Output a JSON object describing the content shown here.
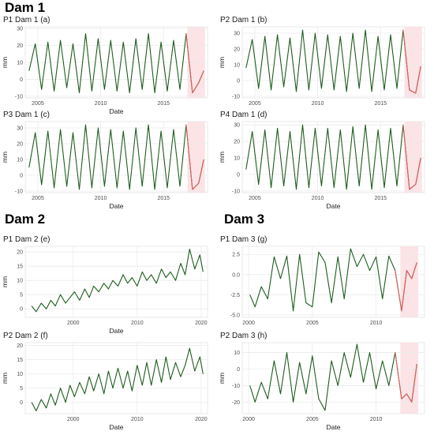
{
  "sections": [
    {
      "title": "Dam 1"
    },
    {
      "title": "Dam 2"
    },
    {
      "title": "Dam 3"
    }
  ],
  "colors": {
    "series": "#1f5c1f",
    "highlight": "#e06060",
    "highlight_band": "#fbe3e6",
    "grid": "#ebebeb",
    "panel_border": "#d9d9d9"
  },
  "chart_data": [
    {
      "id": "p1dam1",
      "title": "P1 Dam 1 (a)",
      "type": "line",
      "xlabel": "Date",
      "ylabel": "mm",
      "xlim": [
        2004,
        2018.5
      ],
      "ylim": [
        -11,
        31
      ],
      "xticks": [
        2005,
        2010,
        2015
      ],
      "yticks": [
        -10,
        0,
        10,
        20,
        30
      ],
      "tick_labels_y": [
        "-10",
        "0",
        "10",
        "20",
        "30"
      ],
      "tick_labels_x": [
        "2005",
        "2010",
        "2015"
      ],
      "highlight_range": [
        2016.9,
        2018.3
      ],
      "grid": true,
      "series": [
        {
          "x": [
            2004.3,
            2004.8,
            2005.3,
            2005.8,
            2006.3,
            2006.8,
            2007.3,
            2007.8,
            2008.3,
            2008.8,
            2009.3,
            2009.8,
            2010.3,
            2010.8,
            2011.3,
            2011.8,
            2012.3,
            2012.8,
            2013.3,
            2013.8,
            2014.3,
            2014.8,
            2015.3,
            2015.8,
            2016.3,
            2016.8,
            2017.3,
            2017.8,
            2018.2
          ],
          "y": [
            5,
            21,
            -6,
            22,
            -7,
            23,
            -5,
            21,
            -8,
            27,
            -7,
            24,
            -6,
            23,
            -7,
            22,
            -8,
            24,
            -6,
            27,
            -8,
            22,
            -7,
            23,
            -6,
            27,
            -8,
            -2,
            5
          ]
        }
      ]
    },
    {
      "id": "p2dam1",
      "title": "P2 Dam 1 (b)",
      "type": "line",
      "xlabel": "",
      "ylabel": "mm",
      "xlim": [
        2004,
        2018.5
      ],
      "ylim": [
        -11,
        34
      ],
      "xticks": [
        2005,
        2010,
        2015
      ],
      "yticks": [
        -10,
        0,
        10,
        20,
        30
      ],
      "tick_labels_y": [
        "-10",
        "0",
        "10",
        "20",
        "30"
      ],
      "tick_labels_x": [
        "2005",
        "2010",
        "2015"
      ],
      "highlight_range": [
        2016.9,
        2018.3
      ],
      "grid": true,
      "series": [
        {
          "x": [
            2004.3,
            2004.8,
            2005.3,
            2005.8,
            2006.3,
            2006.8,
            2007.3,
            2007.8,
            2008.3,
            2008.8,
            2009.3,
            2009.8,
            2010.3,
            2010.8,
            2011.3,
            2011.8,
            2012.3,
            2012.8,
            2013.3,
            2013.8,
            2014.3,
            2014.8,
            2015.3,
            2015.8,
            2016.3,
            2016.8,
            2017.3,
            2017.8,
            2018.2
          ],
          "y": [
            8,
            26,
            -5,
            28,
            -6,
            29,
            -4,
            27,
            -7,
            32,
            -6,
            30,
            -5,
            29,
            -6,
            28,
            -7,
            30,
            -5,
            32,
            -7,
            28,
            -6,
            29,
            -5,
            32,
            -6,
            -8,
            9
          ]
        }
      ]
    },
    {
      "id": "p3dam1",
      "title": "P3 Dam 1 (c)",
      "type": "line",
      "xlabel": "Date",
      "ylabel": "mm",
      "xlim": [
        2004,
        2018.5
      ],
      "ylim": [
        -11,
        34
      ],
      "xticks": [
        2005,
        2010,
        2015
      ],
      "yticks": [
        -10,
        0,
        10,
        20,
        30
      ],
      "tick_labels_y": [
        "-10",
        "0",
        "10",
        "20",
        "30"
      ],
      "tick_labels_x": [
        "2005",
        "2010",
        "2015"
      ],
      "highlight_range": [
        2016.9,
        2018.3
      ],
      "grid": true,
      "series": [
        {
          "x": [
            2004.3,
            2004.8,
            2005.3,
            2005.8,
            2006.3,
            2006.8,
            2007.3,
            2007.8,
            2008.3,
            2008.8,
            2009.3,
            2009.8,
            2010.3,
            2010.8,
            2011.3,
            2011.8,
            2012.3,
            2012.8,
            2013.3,
            2013.8,
            2014.3,
            2014.8,
            2015.3,
            2015.8,
            2016.3,
            2016.8,
            2017.3,
            2017.8,
            2018.2
          ],
          "y": [
            5,
            27,
            -6,
            28,
            -8,
            29,
            -7,
            27,
            -9,
            32,
            -8,
            30,
            -7,
            29,
            -8,
            28,
            -9,
            30,
            -7,
            32,
            -9,
            28,
            -8,
            29,
            -7,
            32,
            -9,
            -5,
            10
          ]
        }
      ]
    },
    {
      "id": "p4dam1",
      "title": "P4 Dam 1 (d)",
      "type": "line",
      "xlabel": "Date",
      "ylabel": "mm",
      "xlim": [
        2004,
        2018.5
      ],
      "ylim": [
        -11,
        32
      ],
      "xticks": [
        2005,
        2010,
        2015
      ],
      "yticks": [
        -10,
        0,
        10,
        20,
        30
      ],
      "tick_labels_y": [
        "-10",
        "0",
        "10",
        "20",
        "30"
      ],
      "tick_labels_x": [
        "2005",
        "2010",
        "2015"
      ],
      "highlight_range": [
        2016.9,
        2018.3
      ],
      "grid": true,
      "series": [
        {
          "x": [
            2004.3,
            2004.8,
            2005.3,
            2005.8,
            2006.3,
            2006.8,
            2007.3,
            2007.8,
            2008.3,
            2008.8,
            2009.3,
            2009.8,
            2010.3,
            2010.8,
            2011.3,
            2011.8,
            2012.3,
            2012.8,
            2013.3,
            2013.8,
            2014.3,
            2014.8,
            2015.3,
            2015.8,
            2016.3,
            2016.8,
            2017.3,
            2017.8,
            2018.2
          ],
          "y": [
            3,
            26,
            -6,
            27,
            -8,
            28,
            -7,
            26,
            -9,
            30,
            -8,
            28,
            -7,
            28,
            -8,
            27,
            -9,
            29,
            -7,
            30,
            -9,
            27,
            -8,
            28,
            -7,
            30,
            -9,
            -6,
            10
          ]
        }
      ]
    },
    {
      "id": "p1dam2",
      "title": "P1 Dam 2 (e)",
      "type": "line",
      "xlabel": "Date",
      "ylabel": "mm",
      "xlim": [
        1992.5,
        2021
      ],
      "ylim": [
        -3,
        22
      ],
      "xticks": [
        2000,
        2010,
        2020
      ],
      "yticks": [
        0,
        5,
        10,
        15,
        20
      ],
      "tick_labels_y": [
        "0",
        "5",
        "10",
        "15",
        "20"
      ],
      "tick_labels_x": [
        "2000",
        "2010",
        "2020"
      ],
      "grid": true,
      "series": [
        {
          "x": [
            1993.5,
            1994.2,
            1995,
            1995.8,
            1996.5,
            1997.2,
            1998,
            1998.8,
            1999.5,
            2000.2,
            2001,
            2001.8,
            2002.5,
            2003.2,
            2004,
            2004.8,
            2005.5,
            2006.2,
            2007,
            2007.8,
            2008.5,
            2009.2,
            2010,
            2010.8,
            2011.5,
            2012.2,
            2013,
            2013.8,
            2014.5,
            2015.2,
            2016,
            2016.8,
            2017.5,
            2018.2,
            2019,
            2019.8,
            2020.3
          ],
          "y": [
            1,
            -1,
            2,
            0,
            3,
            1,
            5,
            2,
            4,
            6,
            3,
            7,
            4,
            8,
            6,
            9,
            7,
            10,
            8,
            12,
            9,
            11,
            8,
            13,
            10,
            12,
            9,
            14,
            11,
            13,
            10,
            16,
            12,
            21,
            14,
            19,
            13
          ]
        }
      ]
    },
    {
      "id": "p1dam3",
      "title": "P1 Dam 3 (g)",
      "type": "line",
      "xlabel": "",
      "ylabel": "",
      "xlim": [
        1999.5,
        2013.8
      ],
      "ylim": [
        -5.3,
        3.5
      ],
      "xticks": [
        2000,
        2005,
        2010
      ],
      "yticks": [
        -5.0,
        -2.5,
        0.0,
        2.5
      ],
      "tick_labels_y": [
        "-5.0",
        "-2.5",
        "0.0",
        "2.5"
      ],
      "tick_labels_x": [
        "2000",
        "2005",
        "2010"
      ],
      "highlight_range": [
        2011.9,
        2013.3
      ],
      "grid": true,
      "series": [
        {
          "x": [
            2000.1,
            2000.5,
            2001,
            2001.5,
            2002,
            2002.5,
            2003,
            2003.5,
            2004,
            2004.5,
            2005,
            2005.5,
            2006,
            2006.5,
            2007,
            2007.5,
            2008,
            2008.5,
            2009,
            2009.5,
            2010,
            2010.5,
            2011,
            2011.5,
            2012,
            2012.4,
            2012.8,
            2013.2
          ],
          "y": [
            -2.5,
            -4,
            -1.5,
            -3,
            2.2,
            -0.5,
            2.3,
            -4.5,
            2.5,
            -3.5,
            -4,
            2.8,
            1.5,
            -3.5,
            2.2,
            -3,
            3.2,
            1,
            2.5,
            0.5,
            2.2,
            -3,
            2.3,
            0.5,
            -4.5,
            0.5,
            -0.5,
            1.5
          ]
        }
      ]
    },
    {
      "id": "p2dam2",
      "title": "P2 Dam 2 (f)",
      "type": "line",
      "xlabel": "Date",
      "ylabel": "mm",
      "xlim": [
        1992.5,
        2021
      ],
      "ylim": [
        -4,
        21
      ],
      "xticks": [
        2000,
        2010,
        2020
      ],
      "yticks": [
        0,
        5,
        10,
        15,
        20
      ],
      "tick_labels_y": [
        "0",
        "5",
        "10",
        "15",
        "20"
      ],
      "tick_labels_x": [
        "2000",
        "2010",
        "2020"
      ],
      "grid": true,
      "series": [
        {
          "x": [
            1993.5,
            1994.2,
            1995,
            1995.8,
            1996.5,
            1997.2,
            1998,
            1998.8,
            1999.5,
            2000.2,
            2001,
            2001.8,
            2002.5,
            2003.2,
            2004,
            2004.8,
            2005.5,
            2006.2,
            2007,
            2007.8,
            2008.5,
            2009.2,
            2010,
            2010.8,
            2011.5,
            2012.2,
            2013,
            2013.8,
            2014.5,
            2015.2,
            2016,
            2016.8,
            2017.5,
            2018.2,
            2019,
            2019.8,
            2020.3
          ],
          "y": [
            0,
            -3,
            1,
            -2,
            3,
            -1,
            5,
            0,
            6,
            2,
            7,
            3,
            9,
            4,
            10,
            3,
            11,
            5,
            12,
            5,
            11,
            4,
            13,
            6,
            14,
            6,
            15,
            7,
            16,
            8,
            14,
            9,
            13,
            19,
            11,
            16,
            10
          ]
        }
      ]
    },
    {
      "id": "p2dam3",
      "title": "P2 Dam 3 (h)",
      "type": "line",
      "xlabel": "Date",
      "ylabel": "mm",
      "xlim": [
        1999.5,
        2013.8
      ],
      "ylim": [
        -27,
        16
      ],
      "xticks": [
        2000,
        2005,
        2010
      ],
      "yticks": [
        -20,
        -10,
        0,
        10
      ],
      "tick_labels_y": [
        "-20",
        "-10",
        "0",
        "10"
      ],
      "tick_labels_x": [
        "2000",
        "2005",
        "2010"
      ],
      "highlight_range": [
        2011.9,
        2013.3
      ],
      "grid": true,
      "series": [
        {
          "x": [
            2000.1,
            2000.5,
            2001,
            2001.5,
            2002,
            2002.5,
            2003,
            2003.5,
            2004,
            2004.5,
            2005,
            2005.5,
            2006,
            2006.5,
            2007,
            2007.5,
            2008,
            2008.5,
            2009,
            2009.5,
            2010,
            2010.5,
            2011,
            2011.5,
            2012,
            2012.4,
            2012.8,
            2013.2
          ],
          "y": [
            -10,
            -20,
            -8,
            -18,
            5,
            -15,
            10,
            -20,
            4,
            -15,
            8,
            -18,
            -25,
            5,
            -10,
            10,
            -5,
            15,
            -8,
            10,
            -12,
            5,
            -10,
            10,
            -18,
            -15,
            -20,
            3
          ]
        }
      ]
    }
  ]
}
